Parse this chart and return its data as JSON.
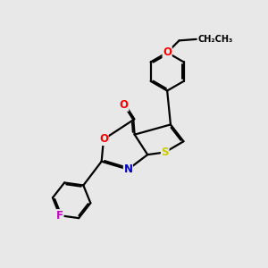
{
  "bg_color": "#e8e8e8",
  "bond_color": "#000000",
  "bond_width": 1.6,
  "dbo": 0.055,
  "atom_colors": {
    "O": "#ff0000",
    "N": "#0000cc",
    "S": "#cccc00",
    "F": "#cc00cc",
    "C": "#000000"
  },
  "font_size": 8.5,
  "figsize": [
    3.0,
    3.0
  ],
  "dpi": 100
}
